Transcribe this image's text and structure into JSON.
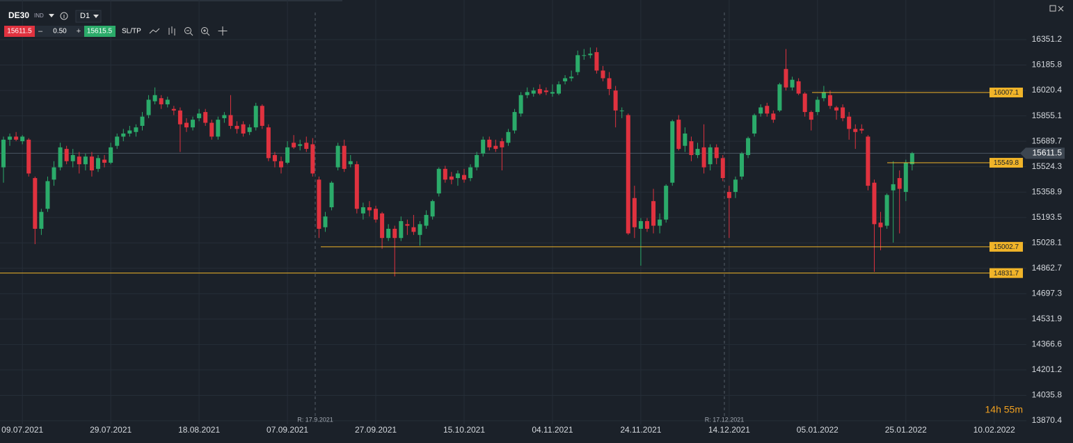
{
  "toolbar": {
    "symbol": "DE30",
    "market": "IND",
    "timeframe": "D1",
    "bid": "15611.5",
    "minus": "–",
    "volume": "0.50",
    "plus": "+",
    "ask": "15615.5",
    "sltp": "SL/TP"
  },
  "chart_data": {
    "type": "candlestick",
    "up_color": "#2bab6a",
    "down_color": "#e0323f",
    "level_color": "#f0b429",
    "xlim": [
      -0.55,
      162.1
    ],
    "xticks": [
      {
        "value": 3,
        "label": "09.07.2021"
      },
      {
        "value": 17,
        "label": "29.07.2021"
      },
      {
        "value": 31,
        "label": "18.08.2021"
      },
      {
        "value": 45,
        "label": "07.09.2021"
      },
      {
        "value": 59,
        "label": "27.09.2021"
      },
      {
        "value": 73,
        "label": "15.10.2021"
      },
      {
        "value": 87,
        "label": "04.11.2021"
      },
      {
        "value": 101,
        "label": "24.11.2021"
      },
      {
        "value": 115,
        "label": "14.12.2021"
      },
      {
        "value": 129,
        "label": "05.01.2022"
      },
      {
        "value": 143,
        "label": "25.01.2022"
      },
      {
        "value": 157,
        "label": "10.02.2022"
      }
    ],
    "ylim": [
      13847.8,
      16609.2
    ],
    "yticks": [
      16351.2,
      16185.8,
      16020.4,
      15855.1,
      15689.7,
      15524.3,
      15358.9,
      15193.5,
      15028.1,
      14862.7,
      14697.3,
      14531.9,
      14366.6,
      14201.2,
      14035.8,
      13870.4
    ],
    "grid": true,
    "open": [
      15520,
      15700,
      15720,
      15690,
      15700,
      15450,
      15120,
      15250,
      15440,
      15520,
      15640,
      15560,
      15590,
      15540,
      15590,
      15510,
      15570,
      15550,
      15660,
      15720,
      15740,
      15750,
      15790,
      15860,
      15950,
      15970,
      15930,
      15900,
      15890,
      15810,
      15780,
      15840,
      15880,
      15810,
      15720,
      15840,
      15860,
      15790,
      15800,
      15750,
      15780,
      15920,
      15780,
      15600,
      15560,
      15550,
      15680,
      15660,
      15680,
      15670,
      15440,
      15130,
      15260,
      15520,
      15660,
      15540,
      15540,
      15220,
      15260,
      15250,
      15220,
      15060,
      15120,
      15060,
      15150,
      15130,
      15080,
      15140,
      15200,
      15350,
      15510,
      15460,
      15450,
      15470,
      15450,
      15520,
      15610,
      15700,
      15660,
      15690,
      15680,
      15760,
      15870,
      15990,
      16000,
      16030,
      16020,
      16000,
      16000,
      16080,
      16100,
      16140,
      16250,
      16250,
      16270,
      16150,
      16100,
      16020,
      15890,
      15860,
      15320,
      15120,
      15170,
      15300,
      15140,
      15180,
      15420,
      15830,
      15660,
      15690,
      15600,
      15650,
      15540,
      15650,
      15580,
      15360,
      15360,
      15460,
      15600,
      15740,
      15870,
      15920,
      15870,
      15890,
      16160,
      16040,
      16080,
      16000,
      15880,
      15880,
      15970,
      15990,
      15910,
      15910,
      15850,
      15770,
      15770,
      15720,
      15420,
      15160,
      15140,
      15370,
      15450,
      15360,
      15540
    ],
    "high": [
      15720,
      15740,
      15750,
      15730,
      15710,
      15460,
      15250,
      15460,
      15560,
      15680,
      15660,
      15640,
      15620,
      15610,
      15620,
      15600,
      15600,
      15680,
      15740,
      15770,
      15790,
      15800,
      15880,
      15990,
      16040,
      15990,
      15980,
      15920,
      15910,
      15840,
      15850,
      15900,
      15900,
      15830,
      15850,
      15880,
      15990,
      15820,
      15820,
      15800,
      15940,
      15930,
      15800,
      15620,
      15590,
      15690,
      15730,
      15700,
      15720,
      15710,
      15460,
      15230,
      15430,
      15680,
      15700,
      15600,
      15560,
      15290,
      15300,
      15270,
      15230,
      15150,
      15140,
      15200,
      15180,
      15210,
      15170,
      15240,
      15310,
      15520,
      15530,
      15490,
      15500,
      15510,
      15540,
      15620,
      15720,
      15720,
      15700,
      15710,
      15770,
      15900,
      16010,
      16040,
      16040,
      16060,
      16040,
      16060,
      16080,
      16120,
      16150,
      16280,
      16290,
      16300,
      16300,
      16180,
      16140,
      16050,
      15910,
      15870,
      15400,
      15190,
      15190,
      15380,
      15220,
      15410,
      15830,
      15860,
      15780,
      15720,
      15680,
      15800,
      15670,
      15670,
      15600,
      15400,
      15460,
      15620,
      15720,
      15870,
      15930,
      15940,
      15890,
      16070,
      16290,
      16110,
      16100,
      16010,
      15890,
      15980,
      16050,
      16020,
      15920,
      15930,
      15880,
      15800,
      15800,
      15730,
      15440,
      15230,
      15350,
      15560,
      15500,
      15570,
      15620
    ],
    "low": [
      15420,
      15660,
      15690,
      15670,
      15460,
      15020,
      15080,
      15230,
      15400,
      15500,
      15540,
      15520,
      15480,
      15500,
      15460,
      15490,
      15520,
      15540,
      15640,
      15690,
      15720,
      15720,
      15760,
      15840,
      15930,
      15900,
      15910,
      15860,
      15620,
      15750,
      15760,
      15820,
      15790,
      15700,
      15700,
      15810,
      15770,
      15740,
      15720,
      15730,
      15760,
      15770,
      15560,
      15520,
      15480,
      15540,
      15640,
      15630,
      15620,
      15460,
      15060,
      15100,
      15240,
      15500,
      15490,
      15520,
      15220,
      15180,
      15200,
      15160,
      14990,
      15040,
      14810,
      15040,
      15080,
      15080,
      15010,
      15120,
      15180,
      15330,
      15420,
      15410,
      15400,
      15420,
      15430,
      15500,
      15590,
      15630,
      15620,
      15500,
      15660,
      15740,
      15850,
      15970,
      15980,
      15990,
      15990,
      15980,
      15990,
      16060,
      16080,
      16120,
      16220,
      16230,
      16130,
      16080,
      15990,
      15780,
      15840,
      15080,
      15060,
      14880,
      15100,
      15090,
      15090,
      15160,
      15400,
      15630,
      15620,
      15560,
      15580,
      15480,
      15500,
      15540,
      15430,
      15060,
      15320,
      15440,
      15580,
      15720,
      15850,
      15850,
      15810,
      15880,
      16020,
      16020,
      15990,
      15850,
      15760,
      15860,
      15950,
      15900,
      15830,
      15820,
      15700,
      15640,
      15740,
      15370,
      14840,
      14980,
      15120,
      15030,
      15090,
      15300,
      15500
    ],
    "close": [
      15700,
      15720,
      15700,
      15720,
      15480,
      15120,
      15230,
      15430,
      15520,
      15650,
      15560,
      15600,
      15540,
      15590,
      15500,
      15580,
      15550,
      15650,
      15720,
      15740,
      15760,
      15780,
      15850,
      15960,
      15990,
      15930,
      15960,
      15890,
      15800,
      15780,
      15830,
      15870,
      15810,
      15720,
      15830,
      15860,
      15790,
      15770,
      15740,
      15780,
      15920,
      15790,
      15580,
      15560,
      15520,
      15650,
      15650,
      15670,
      15640,
      15480,
      15120,
      15200,
      15420,
      15660,
      15510,
      15560,
      15250,
      15260,
      15240,
      15180,
      15060,
      15120,
      15060,
      15170,
      15140,
      15100,
      15150,
      15210,
      15300,
      15510,
      15440,
      15440,
      15480,
      15440,
      15520,
      15600,
      15700,
      15650,
      15640,
      15650,
      15750,
      15880,
      15990,
      16010,
      16020,
      16000,
      16010,
      16010,
      16060,
      16100,
      16110,
      16250,
      16250,
      16260,
      16150,
      16100,
      16030,
      15890,
      15890,
      15090,
      15130,
      15170,
      15120,
      15140,
      15180,
      15400,
      15820,
      15640,
      15740,
      15600,
      15640,
      15520,
      15650,
      15580,
      15450,
      15320,
      15440,
      15610,
      15710,
      15860,
      15910,
      15870,
      15830,
      16060,
      16040,
      16090,
      16000,
      15880,
      15830,
      15960,
      16010,
      15920,
      15890,
      15840,
      15770,
      15750,
      15760,
      15400,
      15150,
      15130,
      15340,
      15410,
      15380,
      15550,
      15611.5
    ],
    "current_price": 15611.5,
    "levels": [
      16007.1,
      15549.8,
      15002.7,
      14831.7
    ],
    "markers": [
      "R: 17.9.2021",
      "R: 17.12.2021"
    ],
    "timer": "14h 55m"
  }
}
